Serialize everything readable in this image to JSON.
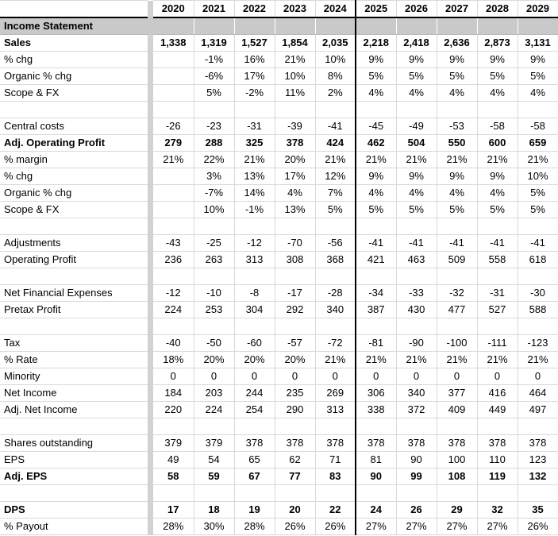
{
  "table": {
    "columns": [
      "2020",
      "2021",
      "2022",
      "2023",
      "2024",
      "2025",
      "2026",
      "2027",
      "2028",
      "2029"
    ],
    "forecast_start_index": 5,
    "rows": [
      {
        "type": "section",
        "label": "Income Statement",
        "values": []
      },
      {
        "label": "Sales",
        "bold": true,
        "values": [
          "1,338",
          "1,319",
          "1,527",
          "1,854",
          "2,035",
          "2,218",
          "2,418",
          "2,636",
          "2,873",
          "3,131"
        ]
      },
      {
        "label": "% chg",
        "values": [
          "",
          "-1%",
          "16%",
          "21%",
          "10%",
          "9%",
          "9%",
          "9%",
          "9%",
          "9%"
        ]
      },
      {
        "label": "Organic % chg",
        "values": [
          "",
          "-6%",
          "17%",
          "10%",
          "8%",
          "5%",
          "5%",
          "5%",
          "5%",
          "5%"
        ]
      },
      {
        "label": "Scope & FX",
        "values": [
          "",
          "5%",
          "-2%",
          "11%",
          "2%",
          "4%",
          "4%",
          "4%",
          "4%",
          "4%"
        ]
      },
      {
        "type": "blank",
        "label": "",
        "values": []
      },
      {
        "label": "Central costs",
        "values": [
          "-26",
          "-23",
          "-31",
          "-39",
          "-41",
          "-45",
          "-49",
          "-53",
          "-58",
          "-58"
        ]
      },
      {
        "label": "Adj. Operating Profit",
        "bold": true,
        "values": [
          "279",
          "288",
          "325",
          "378",
          "424",
          "462",
          "504",
          "550",
          "600",
          "659"
        ]
      },
      {
        "label": "% margin",
        "values": [
          "21%",
          "22%",
          "21%",
          "20%",
          "21%",
          "21%",
          "21%",
          "21%",
          "21%",
          "21%"
        ]
      },
      {
        "label": "% chg",
        "values": [
          "",
          "3%",
          "13%",
          "17%",
          "12%",
          "9%",
          "9%",
          "9%",
          "9%",
          "10%"
        ]
      },
      {
        "label": "Organic % chg",
        "values": [
          "",
          "-7%",
          "14%",
          "4%",
          "7%",
          "4%",
          "4%",
          "4%",
          "4%",
          "5%"
        ]
      },
      {
        "label": "Scope & FX",
        "values": [
          "",
          "10%",
          "-1%",
          "13%",
          "5%",
          "5%",
          "5%",
          "5%",
          "5%",
          "5%"
        ]
      },
      {
        "type": "blank",
        "label": "",
        "values": []
      },
      {
        "label": "Adjustments",
        "values": [
          "-43",
          "-25",
          "-12",
          "-70",
          "-56",
          "-41",
          "-41",
          "-41",
          "-41",
          "-41"
        ]
      },
      {
        "label": "Operating Profit",
        "values": [
          "236",
          "263",
          "313",
          "308",
          "368",
          "421",
          "463",
          "509",
          "558",
          "618"
        ]
      },
      {
        "type": "blank",
        "label": "",
        "values": []
      },
      {
        "label": "Net Financial Expenses",
        "values": [
          "-12",
          "-10",
          "-8",
          "-17",
          "-28",
          "-34",
          "-33",
          "-32",
          "-31",
          "-30"
        ]
      },
      {
        "label": "Pretax Profit",
        "values": [
          "224",
          "253",
          "304",
          "292",
          "340",
          "387",
          "430",
          "477",
          "527",
          "588"
        ]
      },
      {
        "type": "blank",
        "label": "",
        "values": []
      },
      {
        "label": "Tax",
        "values": [
          "-40",
          "-50",
          "-60",
          "-57",
          "-72",
          "-81",
          "-90",
          "-100",
          "-111",
          "-123"
        ]
      },
      {
        "label": "% Rate",
        "values": [
          "18%",
          "20%",
          "20%",
          "20%",
          "21%",
          "21%",
          "21%",
          "21%",
          "21%",
          "21%"
        ]
      },
      {
        "label": "Minority",
        "values": [
          "0",
          "0",
          "0",
          "0",
          "0",
          "0",
          "0",
          "0",
          "0",
          "0"
        ]
      },
      {
        "label": "Net Income",
        "values": [
          "184",
          "203",
          "244",
          "235",
          "269",
          "306",
          "340",
          "377",
          "416",
          "464"
        ]
      },
      {
        "label": "Adj. Net Income",
        "values": [
          "220",
          "224",
          "254",
          "290",
          "313",
          "338",
          "372",
          "409",
          "449",
          "497"
        ]
      },
      {
        "type": "blank",
        "label": "",
        "values": []
      },
      {
        "label": "Shares outstanding",
        "values": [
          "379",
          "379",
          "378",
          "378",
          "378",
          "378",
          "378",
          "378",
          "378",
          "378"
        ]
      },
      {
        "label": "EPS",
        "values": [
          "49",
          "54",
          "65",
          "62",
          "71",
          "81",
          "90",
          "100",
          "110",
          "123"
        ]
      },
      {
        "label": "Adj. EPS",
        "bold": true,
        "values": [
          "58",
          "59",
          "67",
          "77",
          "83",
          "90",
          "99",
          "108",
          "119",
          "132"
        ]
      },
      {
        "type": "blank",
        "label": "",
        "values": []
      },
      {
        "label": "DPS",
        "bold": true,
        "values": [
          "17",
          "18",
          "19",
          "20",
          "22",
          "24",
          "26",
          "29",
          "32",
          "35"
        ]
      },
      {
        "label": "% Payout",
        "values": [
          "28%",
          "30%",
          "28%",
          "26%",
          "26%",
          "27%",
          "27%",
          "27%",
          "27%",
          "26%"
        ]
      }
    ]
  },
  "colors": {
    "section_row_bg": "#c9c9c9",
    "separator_bg": "#d2d2d2",
    "gridline": "#d9d9d9",
    "divider": "#000000",
    "text": "#000000",
    "background": "#ffffff"
  }
}
